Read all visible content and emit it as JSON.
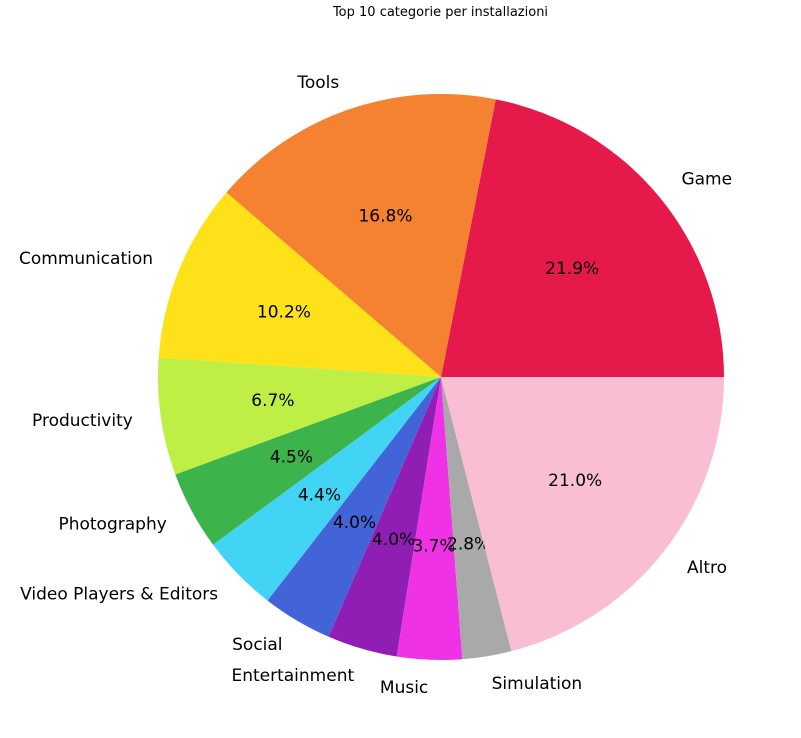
{
  "chart_data": {
    "type": "pie",
    "title": "Top 10 categorie per installazioni",
    "slices": [
      {
        "label": "Game",
        "value": 21.9,
        "pct_label": "21.9%",
        "color": "#e6194b"
      },
      {
        "label": "Tools",
        "value": 16.8,
        "pct_label": "16.8%",
        "color": "#f58231"
      },
      {
        "label": "Communication",
        "value": 10.2,
        "pct_label": "10.2%",
        "color": "#ffe119"
      },
      {
        "label": "Productivity",
        "value": 6.7,
        "pct_label": "6.7%",
        "color": "#bfef45"
      },
      {
        "label": "Photography",
        "value": 4.5,
        "pct_label": "4.5%",
        "color": "#3cb44b"
      },
      {
        "label": "Video Players & Editors",
        "value": 4.4,
        "pct_label": "4.4%",
        "color": "#42d4f4"
      },
      {
        "label": "Social",
        "value": 4.0,
        "pct_label": "4.0%",
        "color": "#4363d8"
      },
      {
        "label": "Entertainment",
        "value": 4.0,
        "pct_label": "4.0%",
        "color": "#911eb4"
      },
      {
        "label": "Music",
        "value": 3.7,
        "pct_label": "3.7%",
        "color": "#f032e6"
      },
      {
        "label": "Simulation",
        "value": 2.8,
        "pct_label": "2.8%",
        "color": "#a9a9a9"
      },
      {
        "label": "Altro",
        "value": 21.0,
        "pct_label": "21.0%",
        "color": "#fabed4"
      }
    ]
  }
}
